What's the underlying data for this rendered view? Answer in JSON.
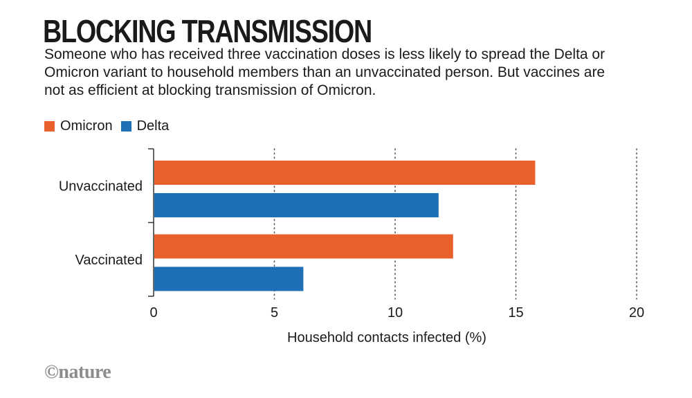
{
  "title": "BLOCKING TRANSMISSION",
  "subtitle": "Someone who has received three vaccination doses is less likely to spread the Delta or Omicron variant to household members than an unvaccinated person. But vaccines are not as efficient at blocking transmission of Omicron.",
  "credit": "©nature",
  "colors": {
    "omicron": "#e8612c",
    "delta": "#1f6fb6",
    "axis": "#333333",
    "grid": "#555555"
  },
  "chart_data": {
    "type": "bar",
    "orientation": "horizontal",
    "categories": [
      "Unvaccinated",
      "Vaccinated"
    ],
    "series": [
      {
        "name": "Omicron",
        "values": [
          15.8,
          12.4
        ]
      },
      {
        "name": "Delta",
        "values": [
          11.8,
          6.2
        ]
      }
    ],
    "xlabel": "Household contacts infected (%)",
    "xlim": [
      0,
      20
    ],
    "xticks": [
      "0",
      "5",
      "10",
      "15",
      "20"
    ],
    "legend_position": "top-left",
    "grid": true
  }
}
